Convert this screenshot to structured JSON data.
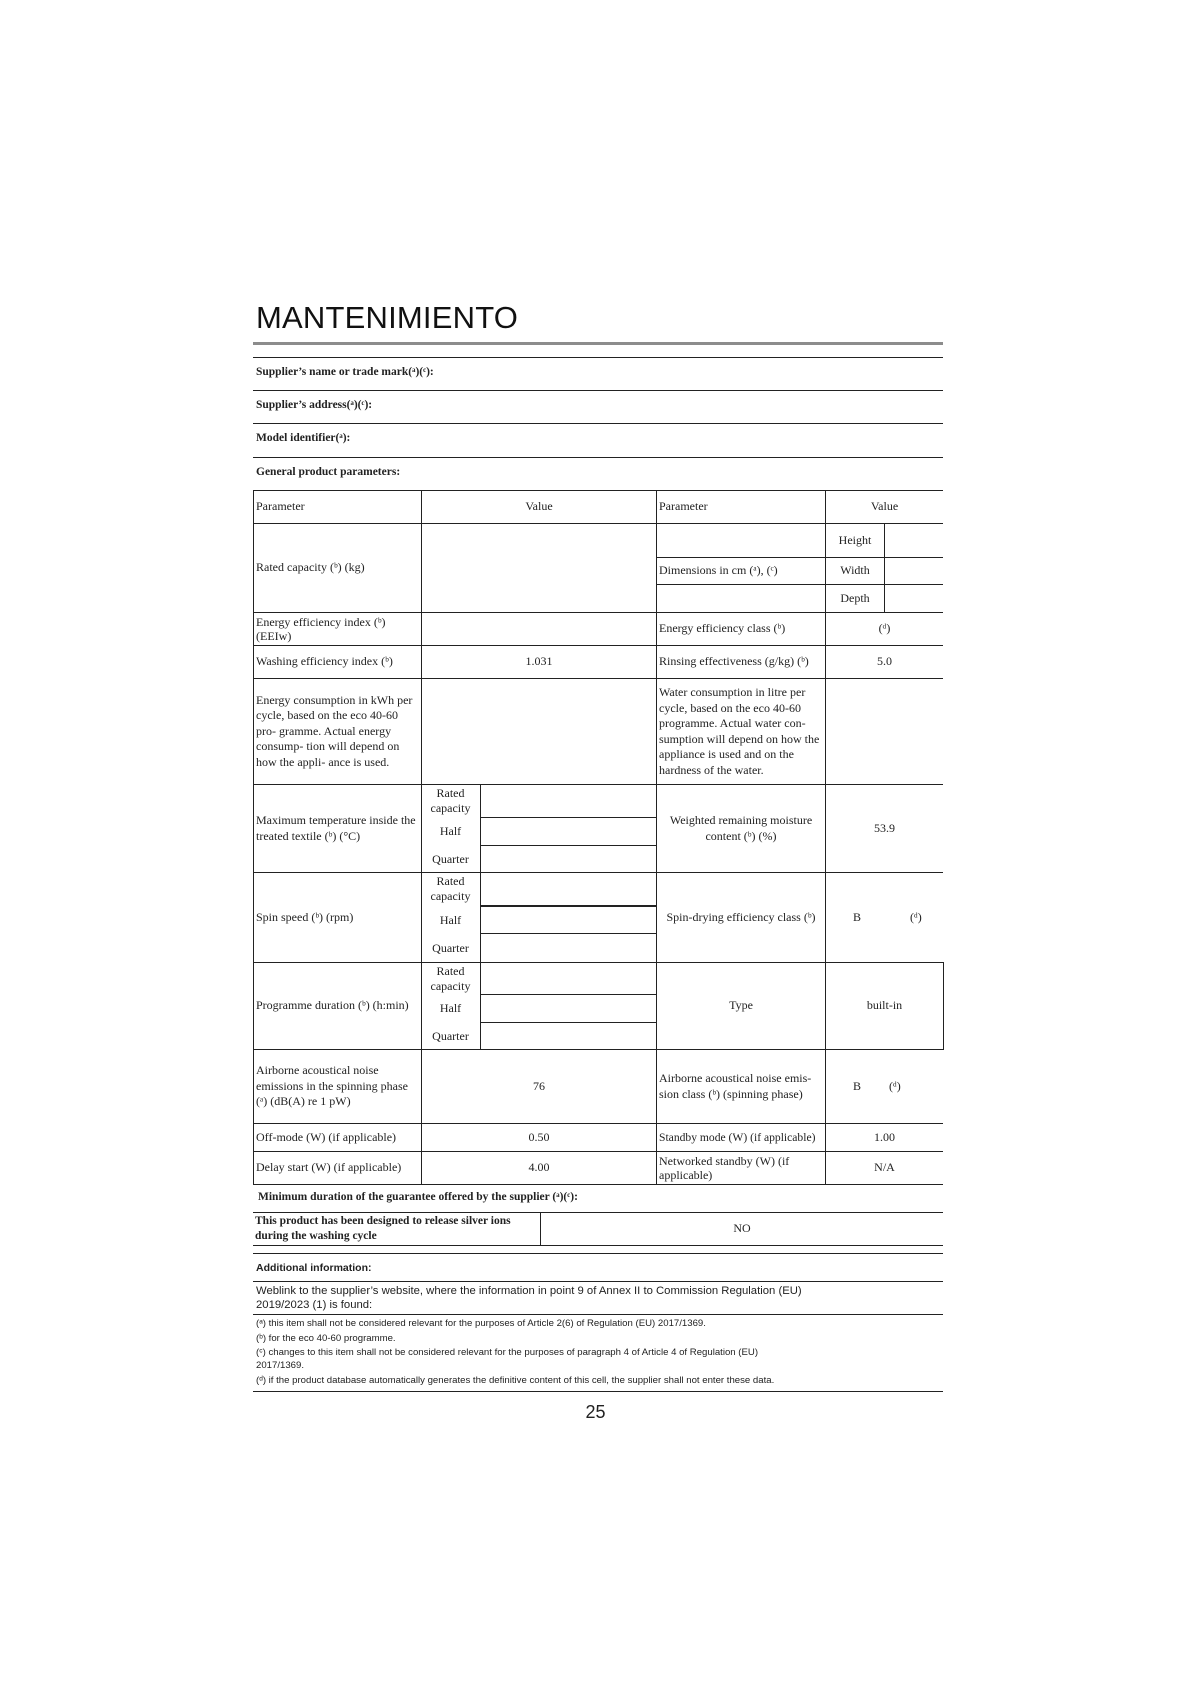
{
  "page_title": "MANTENIMIENTO",
  "supplier_name_label": "Supplier’s name or trade mark(ᵃ)(ᶜ):",
  "supplier_address_label": "Supplier’s address(ᵃ)(ᶜ):",
  "model_identifier_label": "Model identifier(ᵃ):",
  "general_params_label": "General product parameters:",
  "table": {
    "header": {
      "param1": "Parameter",
      "value1": "Value",
      "param2": "Parameter",
      "value2": "Value"
    },
    "rated_capacity": {
      "label": "Rated capacity (ᵇ) (kg)",
      "value": ""
    },
    "dimensions": {
      "label": "Dimensions in cm (ᵃ), (ᶜ)",
      "height": "Height",
      "width": "Width",
      "depth": "Depth"
    },
    "eei": {
      "label": "Energy efficiency index (ᵇ) (EEIw)",
      "value": ""
    },
    "energy_class": {
      "label": "Energy efficiency class (ᵇ)",
      "value": "(ᵈ)"
    },
    "washing_index": {
      "label": "Washing efficiency index (ᵇ)",
      "value": "1.031"
    },
    "rinsing": {
      "label": "Rinsing effectiveness (g/kg) (ᵇ)",
      "value": "5.0"
    },
    "energy_consumption": {
      "label": "Energy consumption in kWh per cycle, based on the eco 40-60 pro- gramme. Actual energy consump- tion will depend on how the appli- ance is used.",
      "value": ""
    },
    "water_consumption": {
      "label": "Water consumption in litre per cycle, based on the eco 40-60 programme. Actual water con- sumption will depend on how the appliance is used and on the hardness of the water.",
      "value": ""
    },
    "sub_labels": {
      "rated": "Rated capacity",
      "half": "Half",
      "quarter": "Quarter"
    },
    "max_temp": {
      "label": "Maximum temperature inside the treated textile (ᵇ) (°C)"
    },
    "moisture": {
      "label": "Weighted remaining moisture content (ᵇ) (%)",
      "value": "53.9"
    },
    "spin_speed": {
      "label": "Spin speed (ᵇ) (rpm)"
    },
    "spin_class": {
      "label": "Spin-drying efficiency class (ᵇ)",
      "value": "B",
      "note": "(ᵈ)"
    },
    "programme_duration": {
      "label": "Programme duration (ᵇ) (h:min)"
    },
    "type": {
      "label": "Type",
      "value": "built-in"
    },
    "noise": {
      "label": "Airborne acoustical noise emissions in the spinning phase (ᵃ) (dB(A) re 1 pW)",
      "value": "76"
    },
    "noise_class": {
      "label": "Airborne acoustical noise emis- sion class (ᵇ) (spinning phase)",
      "value": "B",
      "note": "(ᵈ)"
    },
    "off_mode": {
      "label": "Off-mode (W) (if applicable)",
      "value": "0.50"
    },
    "standby": {
      "label": "Standby mode (W) (if applicable)",
      "value": "1.00"
    },
    "delay_start": {
      "label": "Delay start (W) (if applicable)",
      "value": "4.00"
    },
    "networked_standby": {
      "label": "Networked standby (W) (if applicable)",
      "value": "N/A"
    }
  },
  "guarantee_label": "Minimum duration of the guarantee offered by the supplier (ᵃ)(ᶜ):",
  "silver": {
    "label": "This product has been designed to release silver ions during the washing cycle",
    "value": "NO"
  },
  "additional_info_label": "Additional information:",
  "weblink_label": "Weblink to the supplier’s website, where the information in point 9 of Annex II to Commission Regulation (EU) 2019/2023 (1) is found:",
  "footnotes": [
    "(ᵃ) this item shall not be considered relevant for the purposes of Article 2(6) of Regulation (EU) 2017/1369.",
    "(ᵇ) for the eco 40-60 programme.",
    "(ᶜ) changes to this item shall not be considered relevant for the purposes of paragraph 4 of Article 4 of Regulation (EU) 2017/1369.",
    "(ᵈ) if the product database automatically generates the definitive content of this cell, the supplier shall not enter these data."
  ],
  "page_number": "25"
}
